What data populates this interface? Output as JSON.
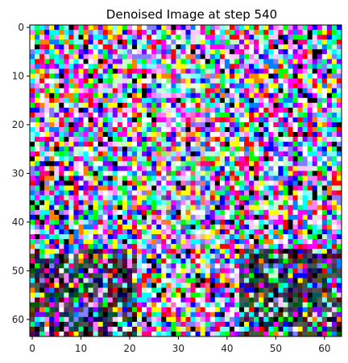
{
  "chart_data": {
    "type": "heatmap",
    "title": "Denoised Image at step 540",
    "xlabel": "",
    "ylabel": "",
    "image_shape": [
      64,
      64
    ],
    "xlim": [
      -0.5,
      63.5
    ],
    "ylim": [
      63.5,
      -0.5
    ],
    "x_ticks": [
      0,
      10,
      20,
      30,
      40,
      50,
      60
    ],
    "y_ticks": [
      0,
      10,
      20,
      30,
      40,
      50,
      60
    ],
    "grid": false,
    "legend": "none",
    "colors": {
      "axis": "#000000",
      "text": "#222222",
      "background": "#ffffff"
    },
    "seed": 540
  }
}
